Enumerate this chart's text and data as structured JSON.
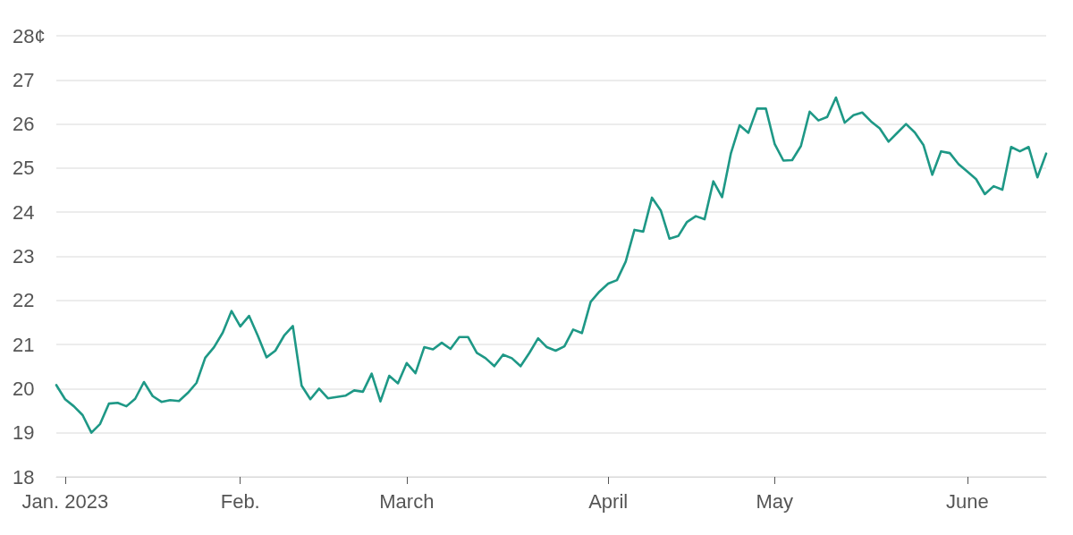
{
  "chart_data": {
    "type": "line",
    "categories": [
      null,
      "Jan. 2023",
      null,
      null,
      null,
      null,
      null,
      null,
      null,
      null,
      null,
      null,
      null,
      null,
      null,
      null,
      null,
      null,
      null,
      null,
      null,
      "Feb.",
      null,
      null,
      null,
      null,
      null,
      null,
      null,
      null,
      null,
      null,
      null,
      null,
      null,
      null,
      null,
      null,
      null,
      null,
      "March",
      null,
      null,
      null,
      null,
      null,
      null,
      null,
      null,
      null,
      null,
      null,
      null,
      null,
      null,
      null,
      null,
      null,
      null,
      null,
      null,
      null,
      null,
      "April",
      null,
      null,
      null,
      null,
      null,
      null,
      null,
      null,
      null,
      null,
      null,
      null,
      null,
      null,
      null,
      null,
      null,
      null,
      "May",
      null,
      null,
      null,
      null,
      null,
      null,
      null,
      null,
      null,
      null,
      null,
      null,
      null,
      null,
      null,
      null,
      null,
      null,
      null,
      null,
      null,
      "June",
      null,
      null,
      null,
      null,
      null,
      null,
      null,
      null,
      null
    ],
    "series": [
      {
        "color": "#1e9886",
        "values": [
          20.08,
          19.76,
          19.6,
          19.4,
          19.0,
          19.2,
          19.66,
          19.68,
          19.6,
          19.77,
          20.15,
          19.83,
          19.7,
          19.74,
          19.72,
          19.9,
          20.13,
          20.7,
          20.94,
          21.27,
          21.76,
          21.41,
          21.65,
          21.2,
          20.71,
          20.86,
          21.2,
          21.42,
          20.07,
          19.76,
          20.0,
          19.78,
          19.81,
          19.84,
          19.96,
          19.93,
          20.34,
          19.71,
          20.29,
          20.12,
          20.58,
          20.35,
          20.94,
          20.89,
          21.04,
          20.9,
          21.17,
          21.17,
          20.81,
          20.69,
          20.51,
          20.77,
          20.69,
          20.51,
          20.81,
          21.14,
          20.94,
          20.86,
          20.96,
          21.34,
          21.26,
          21.97,
          22.2,
          22.38,
          22.46,
          22.88,
          23.6,
          23.56,
          24.33,
          24.04,
          23.4,
          23.46,
          23.78,
          23.91,
          23.84,
          24.7,
          24.34,
          25.33,
          25.97,
          25.8,
          26.35,
          26.35,
          25.55,
          25.17,
          25.18,
          25.5,
          26.28,
          26.08,
          26.16,
          26.6,
          26.03,
          26.2,
          26.26,
          26.06,
          25.9,
          25.6,
          25.8,
          26.0,
          25.81,
          25.52,
          24.85,
          25.38,
          25.34,
          25.09,
          24.92,
          24.75,
          24.41,
          24.59,
          24.51,
          25.48,
          25.38,
          25.48,
          24.79,
          25.33
        ]
      }
    ],
    "ylim": [
      18,
      28
    ],
    "yticks": [
      18,
      19,
      20,
      21,
      22,
      23,
      24,
      25,
      26,
      27,
      {
        "value": 28,
        "label": "28¢"
      }
    ],
    "grid": "y",
    "marker": "none",
    "line_style": "solid"
  }
}
